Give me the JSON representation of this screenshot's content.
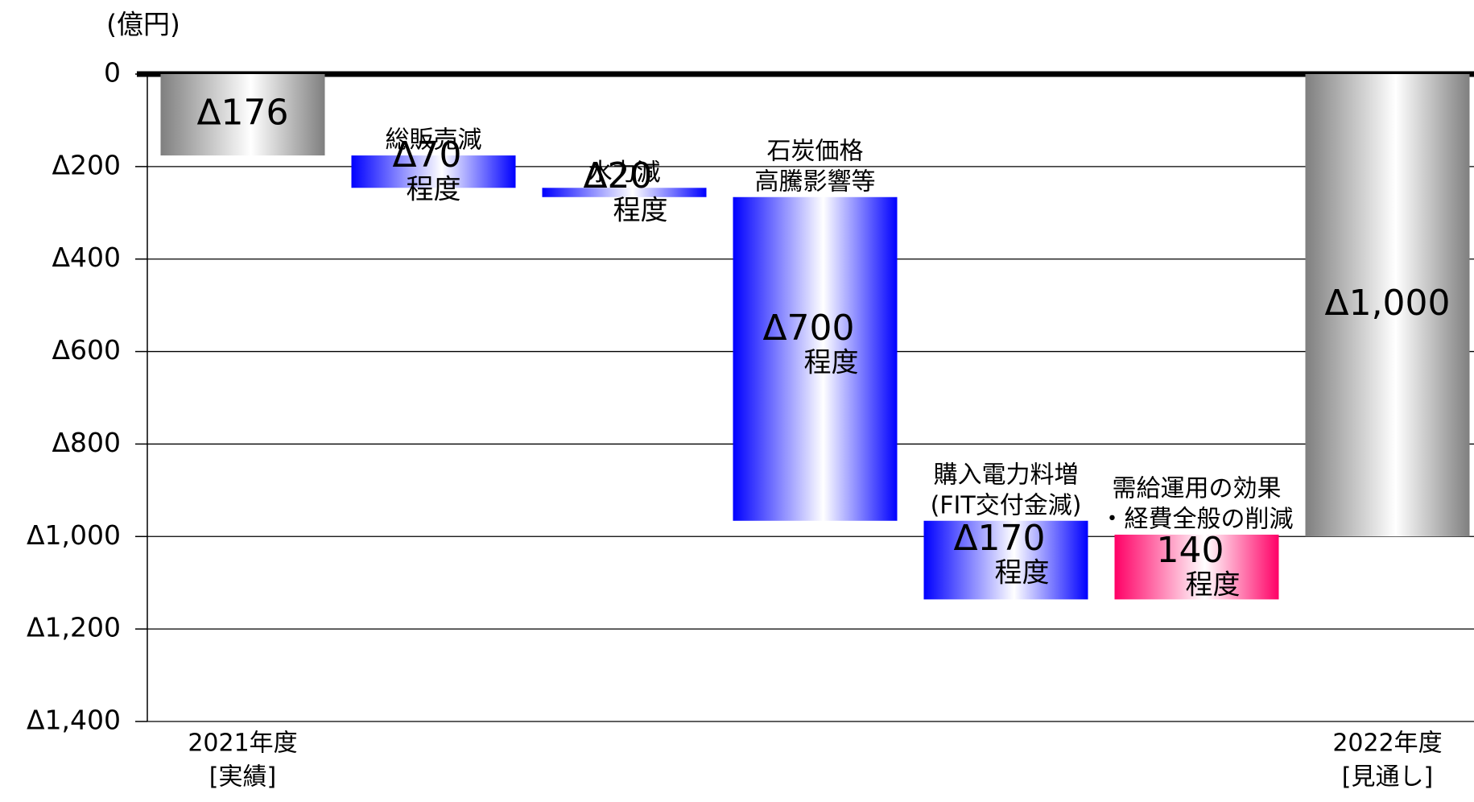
{
  "chart_data": {
    "type": "waterfall",
    "y_label": "(億円)",
    "categories": [
      [
        "2021年度",
        "[実績]"
      ],
      [
        "総販売減"
      ],
      [
        "水力減"
      ],
      [
        "石炭価格",
        "高騰影響等"
      ],
      [
        "購入電力料増",
        "(FIT交付金減)"
      ],
      [
        "需給運用の効果",
        "・経費全般の削減"
      ],
      [
        "2022年度",
        "[見通し]"
      ]
    ],
    "measure": [
      "total",
      "relative",
      "relative",
      "relative",
      "relative",
      "relative",
      "total"
    ],
    "values": [
      -176,
      -70,
      -20,
      -700,
      -170,
      140,
      -1000
    ],
    "value_labels": [
      "Δ176",
      "Δ70",
      "Δ20",
      "Δ700",
      "Δ170",
      "140",
      "Δ1,000"
    ],
    "value_notes": [
      null,
      "程度",
      "程度",
      "程度",
      "程度",
      "程度",
      null
    ],
    "colors": [
      "#7f7f7f",
      "#0000ff",
      "#0000ff",
      "#0000ff",
      "#0000ff",
      "#ff0066",
      "#7f7f7f"
    ],
    "ylim": [
      -1400,
      0
    ],
    "yticks": [
      0,
      {
        "value": -200,
        "label": "Δ200"
      },
      {
        "value": -400,
        "label": "Δ400"
      },
      {
        "value": -600,
        "label": "Δ600"
      },
      {
        "value": -800,
        "label": "Δ800"
      },
      {
        "value": -1000,
        "label": "Δ1,000"
      },
      {
        "value": -1200,
        "label": "Δ1,200"
      },
      {
        "value": -1400,
        "label": "Δ1,400"
      }
    ],
    "grid": true
  }
}
